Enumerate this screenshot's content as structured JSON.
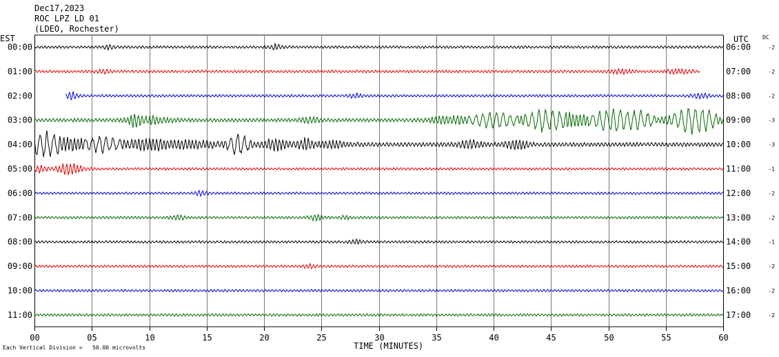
{
  "header": {
    "date": "Dec17,2023",
    "station": "ROC LPZ LD 01",
    "network": "(LDEO, Rochester)"
  },
  "left_axis_label": "EST",
  "right_axis_label": "UTC",
  "dc_label": "DC",
  "footer": {
    "scale_note": "Each Vertical Division =   50.00 microvolts"
  },
  "colors": {
    "black": "#000000",
    "red": "#dd0000",
    "blue": "#0000cc",
    "green": "#006600",
    "grid": "#777777"
  },
  "chart_data": {
    "type": "line",
    "title": "",
    "xlabel": "TIME (MINUTES)",
    "ylabel": "",
    "xlim": [
      0,
      60
    ],
    "x_ticks": [
      "00",
      "05",
      "10",
      "15",
      "20",
      "25",
      "30",
      "35",
      "40",
      "45",
      "50",
      "55",
      "60"
    ],
    "grid": true,
    "series": [
      {
        "est": "00:00",
        "utc": "06:00",
        "dc": "-2",
        "color": "black",
        "start": 0,
        "end": 60,
        "amp": 1.6,
        "bursts": [
          [
            21,
            2.5,
            0.6
          ],
          [
            6.5,
            1.8,
            0.5
          ]
        ]
      },
      {
        "est": "01:00",
        "utc": "07:00",
        "dc": "-2",
        "color": "red",
        "start": 0,
        "end": 58,
        "amp": 1.6,
        "bursts": [
          [
            6,
            2,
            0.6
          ],
          [
            51,
            2,
            1.0
          ],
          [
            56,
            2,
            1.2
          ]
        ]
      },
      {
        "est": "02:00",
        "utc": "08:00",
        "dc": "-2",
        "color": "blue",
        "start": 2.7,
        "end": 60,
        "amp": 1.6,
        "bursts": [
          [
            3.2,
            4,
            0.5
          ],
          [
            28,
            2,
            0.6
          ],
          [
            58,
            2.5,
            0.8
          ]
        ]
      },
      {
        "est": "03:00",
        "utc": "09:00",
        "dc": "-3",
        "color": "green",
        "start": 0,
        "end": 60,
        "amp": 2.2,
        "bursts": [
          [
            8.7,
            5,
            0.5
          ],
          [
            10,
            3.5,
            1.8
          ],
          [
            24,
            2.5,
            0.8
          ],
          [
            36,
            4,
            1.5
          ],
          [
            40,
            8,
            2.0
          ],
          [
            44.5,
            14,
            1.6
          ],
          [
            47,
            6,
            1.0
          ],
          [
            50.5,
            13,
            2.0
          ],
          [
            53,
            7,
            1.0
          ],
          [
            57.5,
            16,
            1.8
          ]
        ]
      },
      {
        "est": "04:00",
        "utc": "10:00",
        "dc": "-3",
        "color": "black",
        "start": 0,
        "end": 60,
        "amp": 2.5,
        "bursts": [
          [
            0.8,
            12,
            1.2
          ],
          [
            3,
            6,
            2.0
          ],
          [
            6,
            7,
            1.5
          ],
          [
            10,
            6,
            2.0
          ],
          [
            14,
            4,
            2.0
          ],
          [
            17.8,
            12,
            0.9
          ],
          [
            21,
            6,
            1.0
          ],
          [
            23.5,
            6,
            0.8
          ],
          [
            26,
            3,
            1.5
          ],
          [
            38,
            4,
            1.0
          ],
          [
            42,
            5,
            1.0
          ]
        ]
      },
      {
        "est": "05:00",
        "utc": "11:00",
        "dc": "-1",
        "color": "red",
        "start": 0,
        "end": 60,
        "amp": 1.5,
        "bursts": [
          [
            3,
            6,
            1.2
          ],
          [
            0.5,
            4,
            0.5
          ]
        ]
      },
      {
        "est": "06:00",
        "utc": "12:00",
        "dc": "-2",
        "color": "blue",
        "start": 0,
        "end": 60,
        "amp": 1.5,
        "bursts": [
          [
            14.5,
            2,
            0.5
          ]
        ]
      },
      {
        "est": "07:00",
        "utc": "13:00",
        "dc": "-2",
        "color": "green",
        "start": 0,
        "end": 60,
        "amp": 1.5,
        "bursts": [
          [
            12.5,
            2.5,
            0.6
          ],
          [
            24.5,
            3,
            0.7
          ],
          [
            27,
            2,
            0.5
          ]
        ]
      },
      {
        "est": "08:00",
        "utc": "14:00",
        "dc": "-1",
        "color": "black",
        "start": 0,
        "end": 60,
        "amp": 1.5,
        "bursts": [
          [
            28,
            2,
            0.6
          ]
        ]
      },
      {
        "est": "09:00",
        "utc": "15:00",
        "dc": "-2",
        "color": "red",
        "start": 0,
        "end": 60,
        "amp": 1.5,
        "bursts": [
          [
            24,
            2,
            0.5
          ]
        ]
      },
      {
        "est": "10:00",
        "utc": "16:00",
        "dc": "-2",
        "color": "blue",
        "start": 0,
        "end": 60,
        "amp": 1.5,
        "bursts": []
      },
      {
        "est": "11:00",
        "utc": "17:00",
        "dc": "-2",
        "color": "green",
        "start": 0,
        "end": 60,
        "amp": 1.5,
        "bursts": []
      }
    ]
  }
}
